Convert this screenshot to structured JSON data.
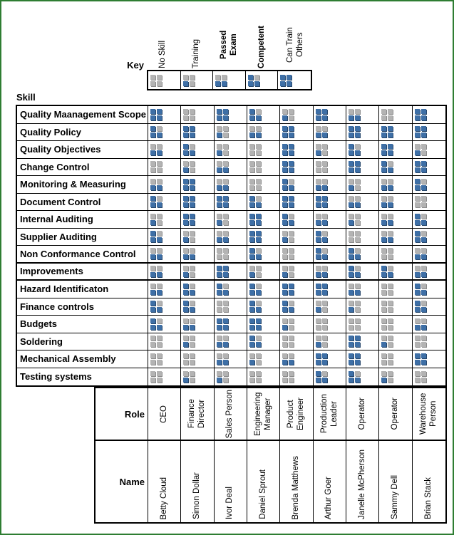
{
  "headers": {
    "key": "Key",
    "skill": "Skill",
    "role": "Role",
    "name": "Name"
  },
  "colors": {
    "filled": "#3E6FA6",
    "empty": "#B3B3B3",
    "frame": "#2E7D32"
  },
  "chart_data": {
    "type": "heatmap",
    "title": "Skills / training matrix",
    "value_scale": "0=No Skill, 1=Training, 2=Passed Exam, 3=Competent, 4=Can Train Others",
    "legend": [
      {
        "label": "No Skill",
        "value": 0,
        "bold": false
      },
      {
        "label": "Training",
        "value": 1,
        "bold": false
      },
      {
        "label": "Passed Exam",
        "value": 2,
        "bold": true
      },
      {
        "label": "Competent",
        "value": 3,
        "bold": true
      },
      {
        "label": "Can Train Others",
        "value": 4,
        "bold": false
      }
    ],
    "rows": [
      "Quality Maanagement Scope",
      "Quality Policy",
      "Quality Objectives",
      "Change Control",
      "Monitoring & Measuring",
      "Document Control",
      "Internal Auditing",
      "Supplier Auditing",
      "Non Conformance Control",
      "Improvements",
      "Hazard Identificaton",
      "Finance controls",
      "Budgets",
      "Soldering",
      "Mechanical Assembly",
      "Testing systems"
    ],
    "columns": [
      {
        "role": "CEO",
        "name": "Betty Cloud"
      },
      {
        "role": "Finance Director",
        "name": "Simon Dollar"
      },
      {
        "role": "Sales Person",
        "name": "Ivor Deal"
      },
      {
        "role": "Engineering Manager",
        "name": "Daniel Sprout"
      },
      {
        "role": "Product Engineer",
        "name": "Brenda Matthews"
      },
      {
        "role": "Production Leader",
        "name": "Arthur Goer"
      },
      {
        "role": "Operator",
        "name": "Janelle McPherson"
      },
      {
        "role": "Operator",
        "name": "Sammy Dell"
      },
      {
        "role": "Warehouse Person",
        "name": "Brian Stack"
      }
    ],
    "values": [
      [
        4,
        0,
        4,
        3,
        1,
        4,
        2,
        0,
        4
      ],
      [
        3,
        4,
        1,
        2,
        4,
        2,
        4,
        4,
        4
      ],
      [
        2,
        3,
        1,
        0,
        4,
        1,
        3,
        4,
        1
      ],
      [
        0,
        1,
        2,
        0,
        4,
        0,
        4,
        3,
        4
      ],
      [
        2,
        4,
        2,
        0,
        3,
        2,
        1,
        2,
        3
      ],
      [
        3,
        4,
        4,
        3,
        4,
        4,
        2,
        2,
        0
      ],
      [
        1,
        4,
        1,
        4,
        3,
        2,
        1,
        2,
        3
      ],
      [
        3,
        1,
        2,
        4,
        1,
        3,
        0,
        2,
        3
      ],
      [
        2,
        2,
        0,
        3,
        0,
        3,
        3,
        0,
        2
      ],
      [
        2,
        1,
        4,
        1,
        1,
        2,
        3,
        3,
        2
      ],
      [
        2,
        3,
        3,
        3,
        4,
        4,
        2,
        0,
        3
      ],
      [
        3,
        3,
        0,
        3,
        3,
        1,
        1,
        0,
        3
      ],
      [
        3,
        2,
        4,
        4,
        1,
        0,
        0,
        0,
        2
      ],
      [
        0,
        1,
        2,
        3,
        0,
        1,
        4,
        1,
        0
      ],
      [
        0,
        0,
        2,
        1,
        2,
        4,
        4,
        0,
        4
      ],
      [
        0,
        1,
        1,
        0,
        0,
        3,
        3,
        1,
        0
      ]
    ]
  }
}
